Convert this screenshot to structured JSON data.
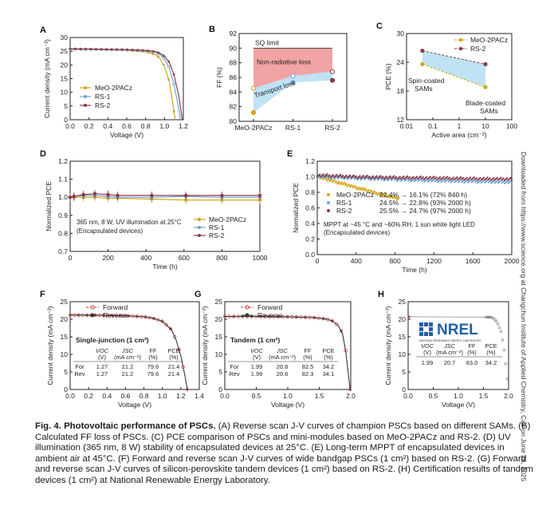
{
  "figure": {
    "caption_bold": "Fig. 4. Photovoltaic performance of PSCs.",
    "caption_text": "(A) Reverse scan J-V curves of champion PSCs based on different SAMs. (B) Calculated FF loss of PSCs. (C) PCE comparison of PSCs and mini-modules based on MeO-2PACz and RS-2. (D) UV illumination (365 nm, 8 W) stability of encapsulated devices at 25°C. (E) Long-term MPPT of encapsulated devices in ambient air at 45°C. (F) Forward and reverse scan J-V curves of wide bandgap PSCs (1 cm²) based on RS-2. (G) Forward and reverse scan J-V curves of silicon-perovskite tandem devices (1 cm²) based on RS-2. (H) Certification results of tandem devices (1 cm²) at National Renewable Energy Laboratory.",
    "side_text": "Downloaded from https://www.science.org at Changchun Institute of Applied Chemistry, Cas on June 26, 2025"
  },
  "colors": {
    "meo": "#d4a514",
    "rs1": "#6fa3d2",
    "rs2": "#8b3a4a",
    "fill_red": "#f2a3a3",
    "fill_blue": "#bfe2f5",
    "nrel": "#1f5fa8"
  },
  "chart_data": [
    {
      "panel": "A",
      "type": "line",
      "xlabel": "Voltage (V)",
      "ylabel": "Current density (mA cm⁻²)",
      "xlim": [
        0.0,
        1.2
      ],
      "ylim": [
        0,
        30
      ],
      "xticks": [
        "0.0",
        "0.2",
        "0.4",
        "0.6",
        "0.8",
        "1.0",
        "1.2"
      ],
      "yticks": [
        "0",
        "5",
        "10",
        "15",
        "20",
        "25",
        "30"
      ],
      "legend": "bottom-left",
      "series": [
        {
          "name": "MeO-2PACz",
          "color": "#d4a514",
          "points": [
            [
              0,
              25.7
            ],
            [
              0.2,
              25.6
            ],
            [
              0.4,
              25.5
            ],
            [
              0.6,
              25.3
            ],
            [
              0.8,
              24.8
            ],
            [
              0.9,
              23.8
            ],
            [
              0.95,
              22.5
            ],
            [
              1.0,
              19.5
            ],
            [
              1.05,
              14
            ],
            [
              1.08,
              8
            ],
            [
              1.1,
              3
            ],
            [
              1.115,
              0
            ]
          ]
        },
        {
          "name": "RS-1",
          "color": "#6fa3d2",
          "points": [
            [
              0,
              25.8
            ],
            [
              0.2,
              25.7
            ],
            [
              0.4,
              25.6
            ],
            [
              0.6,
              25.5
            ],
            [
              0.8,
              25.1
            ],
            [
              0.9,
              24.6
            ],
            [
              0.95,
              23.8
            ],
            [
              1.0,
              22.2
            ],
            [
              1.05,
              19
            ],
            [
              1.1,
              13
            ],
            [
              1.14,
              6
            ],
            [
              1.17,
              0
            ]
          ]
        },
        {
          "name": "RS-2",
          "color": "#8b3a4a",
          "points": [
            [
              0,
              25.9
            ],
            [
              0.2,
              25.8
            ],
            [
              0.4,
              25.7
            ],
            [
              0.6,
              25.6
            ],
            [
              0.8,
              25.3
            ],
            [
              0.9,
              24.9
            ],
            [
              0.95,
              24.3
            ],
            [
              1.0,
              23.2
            ],
            [
              1.05,
              21
            ],
            [
              1.1,
              16.5
            ],
            [
              1.15,
              9
            ],
            [
              1.19,
              0
            ]
          ]
        }
      ]
    },
    {
      "panel": "B",
      "type": "line",
      "xlabel": "",
      "ylabel": "FF (%)",
      "categories": [
        "MeO-2PACz",
        "RS-1",
        "RS-2"
      ],
      "ylim": [
        80,
        92
      ],
      "yticks": [
        "80",
        "82",
        "84",
        "86",
        "88",
        "90",
        "92"
      ],
      "sq_limit": 90.0,
      "series": [
        {
          "name": "upper",
          "values": [
            84.5,
            86.2,
            86.8
          ]
        },
        {
          "name": "lower",
          "values": [
            81.2,
            85.3,
            85.6
          ]
        }
      ],
      "annotations": [
        "SQ limit",
        "Non-radiative loss",
        "Transport loss"
      ]
    },
    {
      "panel": "C",
      "type": "scatter",
      "xlabel": "Active area (cm⁻²)",
      "ylabel": "PCE (%)",
      "xscale": "log",
      "xlim": [
        0.01,
        100
      ],
      "ylim": [
        12,
        30
      ],
      "xticks": [
        "0.01",
        "0.1",
        "1",
        "10",
        "100"
      ],
      "yticks": [
        "12",
        "18",
        "24",
        "30"
      ],
      "legend": "top-right",
      "series": [
        {
          "name": "MeO-2PACz",
          "color": "#d4a514",
          "points": [
            [
              0.04,
              23.6
            ],
            [
              10.0,
              18.8
            ]
          ]
        },
        {
          "name": "RS-2",
          "color": "#8b3a4a",
          "points": [
            [
              0.04,
              26.4
            ],
            [
              10.0,
              23.6
            ]
          ]
        }
      ],
      "annotations": [
        "Spin-coated SAMs",
        "Blade-coated SAMs"
      ]
    },
    {
      "panel": "D",
      "type": "line",
      "xlabel": "Time (h)",
      "ylabel": "Normalized PCE",
      "xlim": [
        0,
        1000
      ],
      "ylim": [
        0.7,
        1.2
      ],
      "xticks": [
        "0",
        "200",
        "400",
        "600",
        "800",
        "1000"
      ],
      "yticks": [
        "0.7",
        "0.8",
        "0.9",
        "1.0",
        "1.1",
        "1.2"
      ],
      "legend": "bottom-right",
      "note": [
        "365 nm, 8 W, UV illumination at 25°C",
        "(Encapsulated devices)"
      ],
      "series": [
        {
          "name": "MeO-2PACz",
          "color": "#d4a514",
          "points": [
            [
              0,
              1.0
            ],
            [
              20,
              1.0
            ],
            [
              70,
              1.0
            ],
            [
              130,
              1.0
            ],
            [
              200,
              0.995
            ],
            [
              250,
              0.995
            ],
            [
              430,
              0.99
            ],
            [
              610,
              0.985
            ],
            [
              800,
              0.985
            ],
            [
              1000,
              0.985
            ]
          ]
        },
        {
          "name": "RS-1",
          "color": "#6fa3d2",
          "points": [
            [
              0,
              1.0
            ],
            [
              20,
              1.005
            ],
            [
              70,
              1.01
            ],
            [
              130,
              1.01
            ],
            [
              200,
              1.005
            ],
            [
              250,
              1.0
            ],
            [
              430,
              1.0
            ],
            [
              610,
              1.005
            ],
            [
              800,
              1.0
            ],
            [
              1000,
              1.0
            ]
          ]
        },
        {
          "name": "RS-2",
          "color": "#8b3a4a",
          "points": [
            [
              0,
              1.0
            ],
            [
              20,
              1.005
            ],
            [
              70,
              1.015
            ],
            [
              130,
              1.02
            ],
            [
              200,
              1.015
            ],
            [
              250,
              1.01
            ],
            [
              430,
              1.01
            ],
            [
              610,
              1.01
            ],
            [
              800,
              1.01
            ],
            [
              1000,
              1.01
            ]
          ]
        }
      ]
    },
    {
      "panel": "E",
      "type": "scatter",
      "xlabel": "Time (h)",
      "ylabel": "Normalized PCE",
      "xlim": [
        0,
        2000
      ],
      "ylim": [
        0.0,
        1.2
      ],
      "xticks": [
        "0",
        "400",
        "800",
        "1200",
        "1600",
        "2000"
      ],
      "yticks": [
        "0.0",
        "0.2",
        "0.4",
        "0.6",
        "0.8",
        "1.0",
        "1.2"
      ],
      "legend": "center-left",
      "note": [
        "MPPT at ~45 °C and ~60% RH, 1 sun white light LED",
        "(Encapsulated devices)"
      ],
      "series": [
        {
          "name": "MeO-2PACz",
          "label": "22.4% → 16.1% (72% 840 h)",
          "color": "#d4a514",
          "points": [
            [
              0,
              1.0
            ],
            [
              100,
              0.97
            ],
            [
              200,
              0.93
            ],
            [
              300,
              0.9
            ],
            [
              400,
              0.86
            ],
            [
              500,
              0.83
            ],
            [
              600,
              0.79
            ],
            [
              700,
              0.76
            ],
            [
              840,
              0.72
            ]
          ]
        },
        {
          "name": "RS-1",
          "label": "24.5% → 22.8% (93% 2000 h)",
          "color": "#6fa3d2",
          "points": [
            [
              0,
              1.0
            ],
            [
              400,
              0.98
            ],
            [
              800,
              0.965
            ],
            [
              1200,
              0.95
            ],
            [
              1600,
              0.94
            ],
            [
              2000,
              0.93
            ]
          ]
        },
        {
          "name": "RS-2",
          "label": "25.5% → 24.7% (97% 2000 h)",
          "color": "#8b3a4a",
          "points": [
            [
              0,
              1.02
            ],
            [
              400,
              1.0
            ],
            [
              800,
              0.99
            ],
            [
              1200,
              0.985
            ],
            [
              1600,
              0.975
            ],
            [
              2000,
              0.97
            ]
          ]
        }
      ]
    },
    {
      "panel": "F",
      "type": "line",
      "xlabel": "Voltage (V)",
      "ylabel": "Current density (mA cm⁻²)",
      "xlim": [
        0.0,
        1.4
      ],
      "ylim": [
        0,
        25
      ],
      "xticks": [
        "0.0",
        "0.2",
        "0.4",
        "0.6",
        "0.8",
        "1.0",
        "1.2",
        "1.4"
      ],
      "yticks": [
        "0",
        "5",
        "10",
        "15",
        "20",
        "25"
      ],
      "legend": "top",
      "title": "Single-junction  (1 cm²)",
      "series": [
        {
          "name": "Forward",
          "color": "#cc3333",
          "points": [
            [
              0,
              21.2
            ],
            [
              0.2,
              21.15
            ],
            [
              0.4,
              21.1
            ],
            [
              0.6,
              21.0
            ],
            [
              0.8,
              20.7
            ],
            [
              0.9,
              20.3
            ],
            [
              1.0,
              19.4
            ],
            [
              1.1,
              17.0
            ],
            [
              1.15,
              14.0
            ],
            [
              1.2,
              9.5
            ],
            [
              1.24,
              4.5
            ],
            [
              1.27,
              0
            ]
          ]
        },
        {
          "name": "Reverse",
          "color": "#333333",
          "points": [
            [
              0,
              21.2
            ],
            [
              0.2,
              21.15
            ],
            [
              0.4,
              21.1
            ],
            [
              0.6,
              21.0
            ],
            [
              0.8,
              20.7
            ],
            [
              0.9,
              20.3
            ],
            [
              1.0,
              19.4
            ],
            [
              1.1,
              17.0
            ],
            [
              1.15,
              14.0
            ],
            [
              1.2,
              9.5
            ],
            [
              1.24,
              4.5
            ],
            [
              1.27,
              0
            ]
          ]
        }
      ],
      "table": {
        "headers": [
          "",
          "VOC (V)",
          "JSC (mA cm⁻²)",
          "FF (%)",
          "PCE (%)"
        ],
        "rows": [
          [
            "For",
            "1.27",
            "21.2",
            "79.6",
            "21.4"
          ],
          [
            "Rev",
            "1.27",
            "21.2",
            "79.6",
            "21.4"
          ]
        ]
      }
    },
    {
      "panel": "G",
      "type": "line",
      "xlabel": "Voltage (V)",
      "ylabel": "Current density (mA cm⁻²)",
      "xlim": [
        0.0,
        2.0
      ],
      "ylim": [
        0,
        25
      ],
      "xticks": [
        "0.0",
        "0.5",
        "1.0",
        "1.5",
        "2.0"
      ],
      "yticks": [
        "0",
        "5",
        "10",
        "15",
        "20",
        "25"
      ],
      "legend": "top",
      "title": "Tandem  (1 cm²)",
      "series": [
        {
          "name": "Forward",
          "color": "#cc3333",
          "points": [
            [
              0,
              20.8
            ],
            [
              0.5,
              20.8
            ],
            [
              1.0,
              20.7
            ],
            [
              1.4,
              20.5
            ],
            [
              1.6,
              20.1
            ],
            [
              1.7,
              19.6
            ],
            [
              1.8,
              18.3
            ],
            [
              1.87,
              16
            ],
            [
              1.92,
              11
            ],
            [
              1.96,
              5
            ],
            [
              1.99,
              0
            ]
          ]
        },
        {
          "name": "Reverse",
          "color": "#333333",
          "points": [
            [
              0,
              20.8
            ],
            [
              0.5,
              20.8
            ],
            [
              1.0,
              20.7
            ],
            [
              1.4,
              20.5
            ],
            [
              1.6,
              20.1
            ],
            [
              1.7,
              19.6
            ],
            [
              1.8,
              18.2
            ],
            [
              1.87,
              15.8
            ],
            [
              1.92,
              10.8
            ],
            [
              1.96,
              4.8
            ],
            [
              1.99,
              0
            ]
          ]
        }
      ],
      "table": {
        "headers": [
          "",
          "VOC (V)",
          "JSC (mA cm⁻²)",
          "FF (%)",
          "PCE (%)"
        ],
        "rows": [
          [
            "For",
            "1.99",
            "20.8",
            "82.5",
            "34.2"
          ],
          [
            "Rev",
            "1.99",
            "20.8",
            "82.3",
            "34.1"
          ]
        ]
      }
    },
    {
      "panel": "H",
      "type": "line",
      "xlabel": "Voltage (V)",
      "ylabel": "Current density (mA cm⁻²)",
      "xlim": [
        0.0,
        2.0
      ],
      "ylim": [
        0,
        25
      ],
      "xticks": [
        "0.0",
        "0.5",
        "1.0",
        "1.5",
        "2.0"
      ],
      "yticks": [
        "0",
        "5",
        "10",
        "15",
        "20",
        "25"
      ],
      "series": [
        {
          "name": "certified",
          "color": "#555555",
          "points": [
            [
              0.0,
              20.7
            ],
            [
              1.65,
              20.6
            ],
            [
              1.72,
              20.1
            ],
            [
              1.78,
              19.0
            ],
            [
              1.85,
              16.5
            ],
            [
              1.9,
              12.5
            ],
            [
              1.95,
              6
            ],
            [
              1.99,
              0
            ]
          ]
        }
      ],
      "logo": {
        "text": "NREL",
        "subtext": "NATIONAL RENEWABLE ENERGY LABORATORY"
      },
      "table": {
        "headers": [
          "VOC (V)",
          "JSC (mA cm⁻²)",
          "FF (%)",
          "PCE (%)"
        ],
        "rows": [
          [
            "1.99",
            "20.7",
            "83.0",
            "34.2"
          ]
        ]
      }
    }
  ]
}
